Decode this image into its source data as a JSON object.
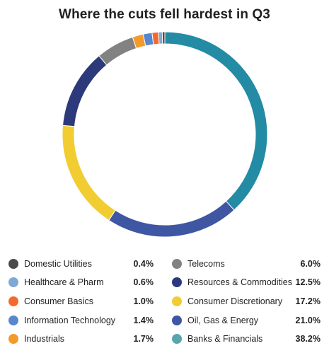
{
  "chart_data": {
    "type": "pie",
    "variant": "donut",
    "title": "Where the cuts fell hardest in Q3",
    "legend_position": "bottom",
    "start_angle_deg": 0,
    "direction": "clockwise",
    "slices": [
      {
        "label": "Banks & Financials",
        "value": 38.2,
        "display": "38.2%",
        "color": "#238ba4"
      },
      {
        "label": "Oil, Gas & Energy",
        "value": 21.0,
        "display": "21.0%",
        "color": "#3f56a3"
      },
      {
        "label": "Consumer Discretionary",
        "value": 17.2,
        "display": "17.2%",
        "color": "#f2cd32"
      },
      {
        "label": "Resources & Commodities",
        "value": 12.5,
        "display": "12.5%",
        "color": "#2c3a7c"
      },
      {
        "label": "Telecoms",
        "value": 6.0,
        "display": "6.0%",
        "color": "#828282"
      },
      {
        "label": "Industrials",
        "value": 1.7,
        "display": "1.7%",
        "color": "#f39a2b"
      },
      {
        "label": "Information Technology",
        "value": 1.4,
        "display": "1.4%",
        "color": "#5887cf"
      },
      {
        "label": "Consumer Basics",
        "value": 1.0,
        "display": "1.0%",
        "color": "#f26a30"
      },
      {
        "label": "Healthcare & Pharm",
        "value": 0.6,
        "display": "0.6%",
        "color": "#7ea9d6"
      },
      {
        "label": "Domestic Utilities",
        "value": 0.4,
        "display": "0.4%",
        "color": "#4a4a4a"
      }
    ]
  },
  "legend": {
    "left": [
      {
        "label": "Domestic Utilities",
        "value": "0.4%",
        "color": "#4a4a4a"
      },
      {
        "label": "Healthcare & Pharm",
        "value": "0.6%",
        "color": "#7ea9d6"
      },
      {
        "label": "Consumer Basics",
        "value": "1.0%",
        "color": "#f26a30"
      },
      {
        "label": "Information Technology",
        "value": "1.4%",
        "color": "#5887cf"
      },
      {
        "label": "Industrials",
        "value": "1.7%",
        "color": "#f39a2b"
      }
    ],
    "right": [
      {
        "label": "Telecoms",
        "value": "6.0%",
        "color": "#828282"
      },
      {
        "label": "Resources & Commodities",
        "value": "12.5%",
        "color": "#2c3a7c"
      },
      {
        "label": "Consumer Discretionary",
        "value": "17.2%",
        "color": "#f2cd32"
      },
      {
        "label": "Oil, Gas & Energy",
        "value": "21.0%",
        "color": "#3f56a3"
      },
      {
        "label": "Banks & Financials",
        "value": "38.2%",
        "color": "#5ba3ad"
      }
    ]
  }
}
